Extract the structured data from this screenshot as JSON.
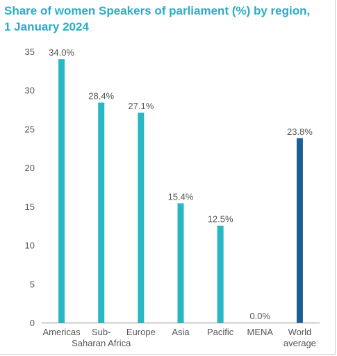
{
  "chart_data": {
    "type": "bar",
    "title_lines": [
      "Share of women Speakers of parliament (%) by region,",
      "1 January 2024"
    ],
    "categories": [
      [
        "Americas"
      ],
      [
        "Sub-",
        "Saharan Africa"
      ],
      [
        "Europe"
      ],
      [
        "Asia"
      ],
      [
        "Pacific"
      ],
      [
        "MENA"
      ],
      [
        "World",
        "average"
      ]
    ],
    "values": [
      34.0,
      28.4,
      27.1,
      15.4,
      12.5,
      0.0,
      23.8
    ],
    "value_labels": [
      "34.0%",
      "28.4%",
      "27.1%",
      "15.4%",
      "12.5%",
      "0.0%",
      "23.8%"
    ],
    "highlight_index": 6,
    "ylim": [
      0,
      35
    ],
    "yticks": [
      0,
      5,
      10,
      15,
      20,
      25,
      30,
      35
    ],
    "grid": false,
    "xlabel": "",
    "ylabel": "",
    "colors": {
      "bar": "#2ab7c4",
      "highlight": "#1b5f96",
      "title": "#27aec7",
      "text": "#555555",
      "axis": "#888888"
    }
  }
}
